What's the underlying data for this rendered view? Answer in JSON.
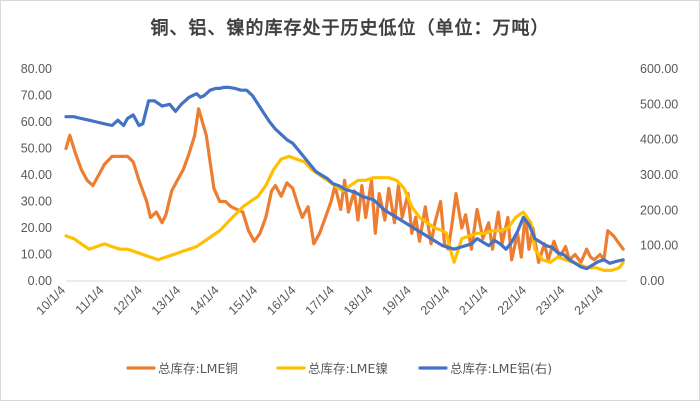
{
  "chart_data": {
    "type": "line",
    "title": "铜、铝、镍的库存处于历史低位（单位：万吨）",
    "x_categories": [
      "10/1/4",
      "11/1/4",
      "12/1/4",
      "13/1/4",
      "14/1/4",
      "15/1/4",
      "16/1/4",
      "17/1/4",
      "18/1/4",
      "19/1/4",
      "20/1/4",
      "21/1/4",
      "22/1/4",
      "23/1/4",
      "24/1/4"
    ],
    "x_range": [
      2010.0,
      2024.6
    ],
    "y_left": {
      "ticks": [
        "0.00",
        "10.00",
        "20.00",
        "30.00",
        "40.00",
        "50.00",
        "60.00",
        "70.00",
        "80.00"
      ],
      "range": [
        0,
        80
      ]
    },
    "y_right": {
      "ticks": [
        "0.00",
        "100.00",
        "200.00",
        "300.00",
        "400.00",
        "500.00",
        "600.00"
      ],
      "range": [
        0,
        600
      ]
    },
    "grid": false,
    "legend_position": "bottom",
    "series": [
      {
        "name": "总库存:LME铜",
        "color": "#ED7D31",
        "axis": "left",
        "x": [
          2010.0,
          2010.1,
          2010.25,
          2010.4,
          2010.55,
          2010.7,
          2010.85,
          2011.0,
          2011.2,
          2011.4,
          2011.6,
          2011.75,
          2011.9,
          2012.1,
          2012.2,
          2012.35,
          2012.5,
          2012.6,
          2012.75,
          2012.9,
          2013.05,
          2013.2,
          2013.35,
          2013.45,
          2013.55,
          2013.65,
          2013.75,
          2013.85,
          2014.0,
          2014.15,
          2014.3,
          2014.45,
          2014.6,
          2014.75,
          2014.9,
          2015.05,
          2015.2,
          2015.35,
          2015.45,
          2015.6,
          2015.75,
          2015.9,
          2016.05,
          2016.15,
          2016.3,
          2016.45,
          2016.6,
          2016.75,
          2016.9,
          2017.0,
          2017.15,
          2017.25,
          2017.35,
          2017.5,
          2017.6,
          2017.7,
          2017.8,
          2017.95,
          2018.05,
          2018.15,
          2018.3,
          2018.4,
          2018.55,
          2018.65,
          2018.75,
          2018.9,
          2019.0,
          2019.1,
          2019.2,
          2019.35,
          2019.5,
          2019.6,
          2019.75,
          2019.85,
          2019.95,
          2020.05,
          2020.15,
          2020.3,
          2020.4,
          2020.55,
          2020.7,
          2020.85,
          2021.0,
          2021.1,
          2021.25,
          2021.35,
          2021.5,
          2021.6,
          2021.75,
          2021.85,
          2021.95,
          2022.05,
          2022.15,
          2022.3,
          2022.45,
          2022.55,
          2022.7,
          2022.85,
          2023.0,
          2023.1,
          2023.25,
          2023.4,
          2023.55,
          2023.65,
          2023.75,
          2023.9,
          2024.0,
          2024.1,
          2024.25,
          2024.4,
          2024.5
        ],
        "values": [
          50,
          55,
          48,
          42,
          38,
          36,
          40,
          44,
          47,
          47,
          47,
          45,
          38,
          30,
          24,
          26,
          22,
          25,
          34,
          38,
          42,
          48,
          55,
          65,
          60,
          55,
          45,
          35,
          30,
          30,
          28,
          27,
          26,
          19,
          15,
          18,
          24,
          34,
          36,
          32,
          37,
          35,
          28,
          24,
          28,
          14,
          18,
          24,
          30,
          36,
          27,
          38,
          26,
          34,
          23,
          36,
          24,
          38,
          18,
          33,
          23,
          35,
          22,
          36,
          24,
          33,
          18,
          24,
          15,
          28,
          14,
          22,
          30,
          14,
          12,
          22,
          33,
          20,
          25,
          12,
          27,
          16,
          22,
          12,
          26,
          14,
          24,
          8,
          18,
          9,
          25,
          12,
          20,
          7,
          14,
          8,
          15,
          9,
          13,
          8,
          10,
          7,
          12,
          9,
          8,
          10,
          8,
          19,
          17,
          14,
          12
        ]
      },
      {
        "name": "总库存:LME镍",
        "color": "#FFC000",
        "axis": "left",
        "x": [
          2010.0,
          2010.2,
          2010.4,
          2010.6,
          2010.8,
          2011.0,
          2011.2,
          2011.4,
          2011.6,
          2011.8,
          2012.0,
          2012.2,
          2012.4,
          2012.6,
          2012.8,
          2013.0,
          2013.2,
          2013.4,
          2013.6,
          2013.8,
          2014.0,
          2014.2,
          2014.4,
          2014.6,
          2014.8,
          2015.0,
          2015.2,
          2015.4,
          2015.6,
          2015.8,
          2016.0,
          2016.2,
          2016.4,
          2016.6,
          2016.8,
          2017.0,
          2017.2,
          2017.4,
          2017.6,
          2017.8,
          2018.0,
          2018.2,
          2018.4,
          2018.6,
          2018.8,
          2019.0,
          2019.2,
          2019.4,
          2019.6,
          2019.8,
          2019.9,
          2020.0,
          2020.1,
          2020.3,
          2020.5,
          2020.7,
          2020.9,
          2021.1,
          2021.3,
          2021.5,
          2021.7,
          2021.9,
          2022.1,
          2022.2,
          2022.4,
          2022.6,
          2022.8,
          2023.0,
          2023.2,
          2023.4,
          2023.6,
          2023.8,
          2024.0,
          2024.2,
          2024.4,
          2024.5
        ],
        "values": [
          17,
          16,
          14,
          12,
          13,
          14,
          13,
          12,
          12,
          11,
          10,
          9,
          8,
          9,
          10,
          11,
          12,
          13,
          15,
          17,
          19,
          22,
          25,
          28,
          30,
          32,
          36,
          42,
          46,
          47,
          46,
          45,
          42,
          40,
          38,
          36,
          34,
          36,
          38,
          38,
          39,
          39,
          39,
          38,
          35,
          28,
          24,
          22,
          20,
          19,
          18,
          12,
          7,
          16,
          17,
          18,
          18,
          19,
          19,
          20,
          24,
          26,
          22,
          12,
          8,
          7,
          9,
          8,
          7,
          6,
          5,
          5,
          4,
          4,
          5,
          7
        ]
      },
      {
        "name": "总库存:LME铝(右)",
        "color": "#4472C4",
        "axis": "right",
        "x": [
          2010.0,
          2010.2,
          2010.4,
          2010.6,
          2010.8,
          2011.0,
          2011.2,
          2011.35,
          2011.5,
          2011.6,
          2011.75,
          2011.9,
          2012.0,
          2012.15,
          2012.3,
          2012.5,
          2012.7,
          2012.85,
          2013.0,
          2013.2,
          2013.4,
          2013.5,
          2013.6,
          2013.75,
          2013.9,
          2014.0,
          2014.1,
          2014.25,
          2014.4,
          2014.55,
          2014.7,
          2014.85,
          2015.0,
          2015.15,
          2015.3,
          2015.45,
          2015.6,
          2015.75,
          2015.9,
          2016.05,
          2016.2,
          2016.35,
          2016.5,
          2016.65,
          2016.8,
          2016.95,
          2017.1,
          2017.25,
          2017.4,
          2017.55,
          2017.7,
          2017.85,
          2018.0,
          2018.15,
          2018.3,
          2018.45,
          2018.6,
          2018.75,
          2018.9,
          2019.05,
          2019.2,
          2019.35,
          2019.5,
          2019.65,
          2019.8,
          2019.95,
          2020.1,
          2020.25,
          2020.4,
          2020.55,
          2020.7,
          2020.85,
          2021.0,
          2021.15,
          2021.3,
          2021.45,
          2021.6,
          2021.75,
          2021.9,
          2022.05,
          2022.2,
          2022.35,
          2022.5,
          2022.65,
          2022.8,
          2022.95,
          2023.1,
          2023.25,
          2023.4,
          2023.55,
          2023.7,
          2023.85,
          2024.0,
          2024.15,
          2024.3,
          2024.5
        ],
        "values": [
          465,
          465,
          460,
          455,
          450,
          445,
          440,
          455,
          440,
          460,
          470,
          440,
          445,
          510,
          510,
          495,
          500,
          480,
          500,
          520,
          530,
          520,
          525,
          540,
          545,
          545,
          548,
          548,
          545,
          540,
          540,
          525,
          500,
          475,
          450,
          430,
          415,
          400,
          390,
          370,
          350,
          330,
          310,
          300,
          290,
          275,
          270,
          260,
          255,
          250,
          240,
          235,
          230,
          215,
          200,
          190,
          180,
          170,
          160,
          150,
          140,
          130,
          120,
          110,
          100,
          95,
          90,
          95,
          100,
          105,
          120,
          110,
          100,
          115,
          105,
          90,
          110,
          140,
          180,
          160,
          120,
          110,
          100,
          95,
          80,
          75,
          60,
          50,
          40,
          35,
          45,
          55,
          60,
          50,
          55,
          60
        ]
      }
    ]
  }
}
